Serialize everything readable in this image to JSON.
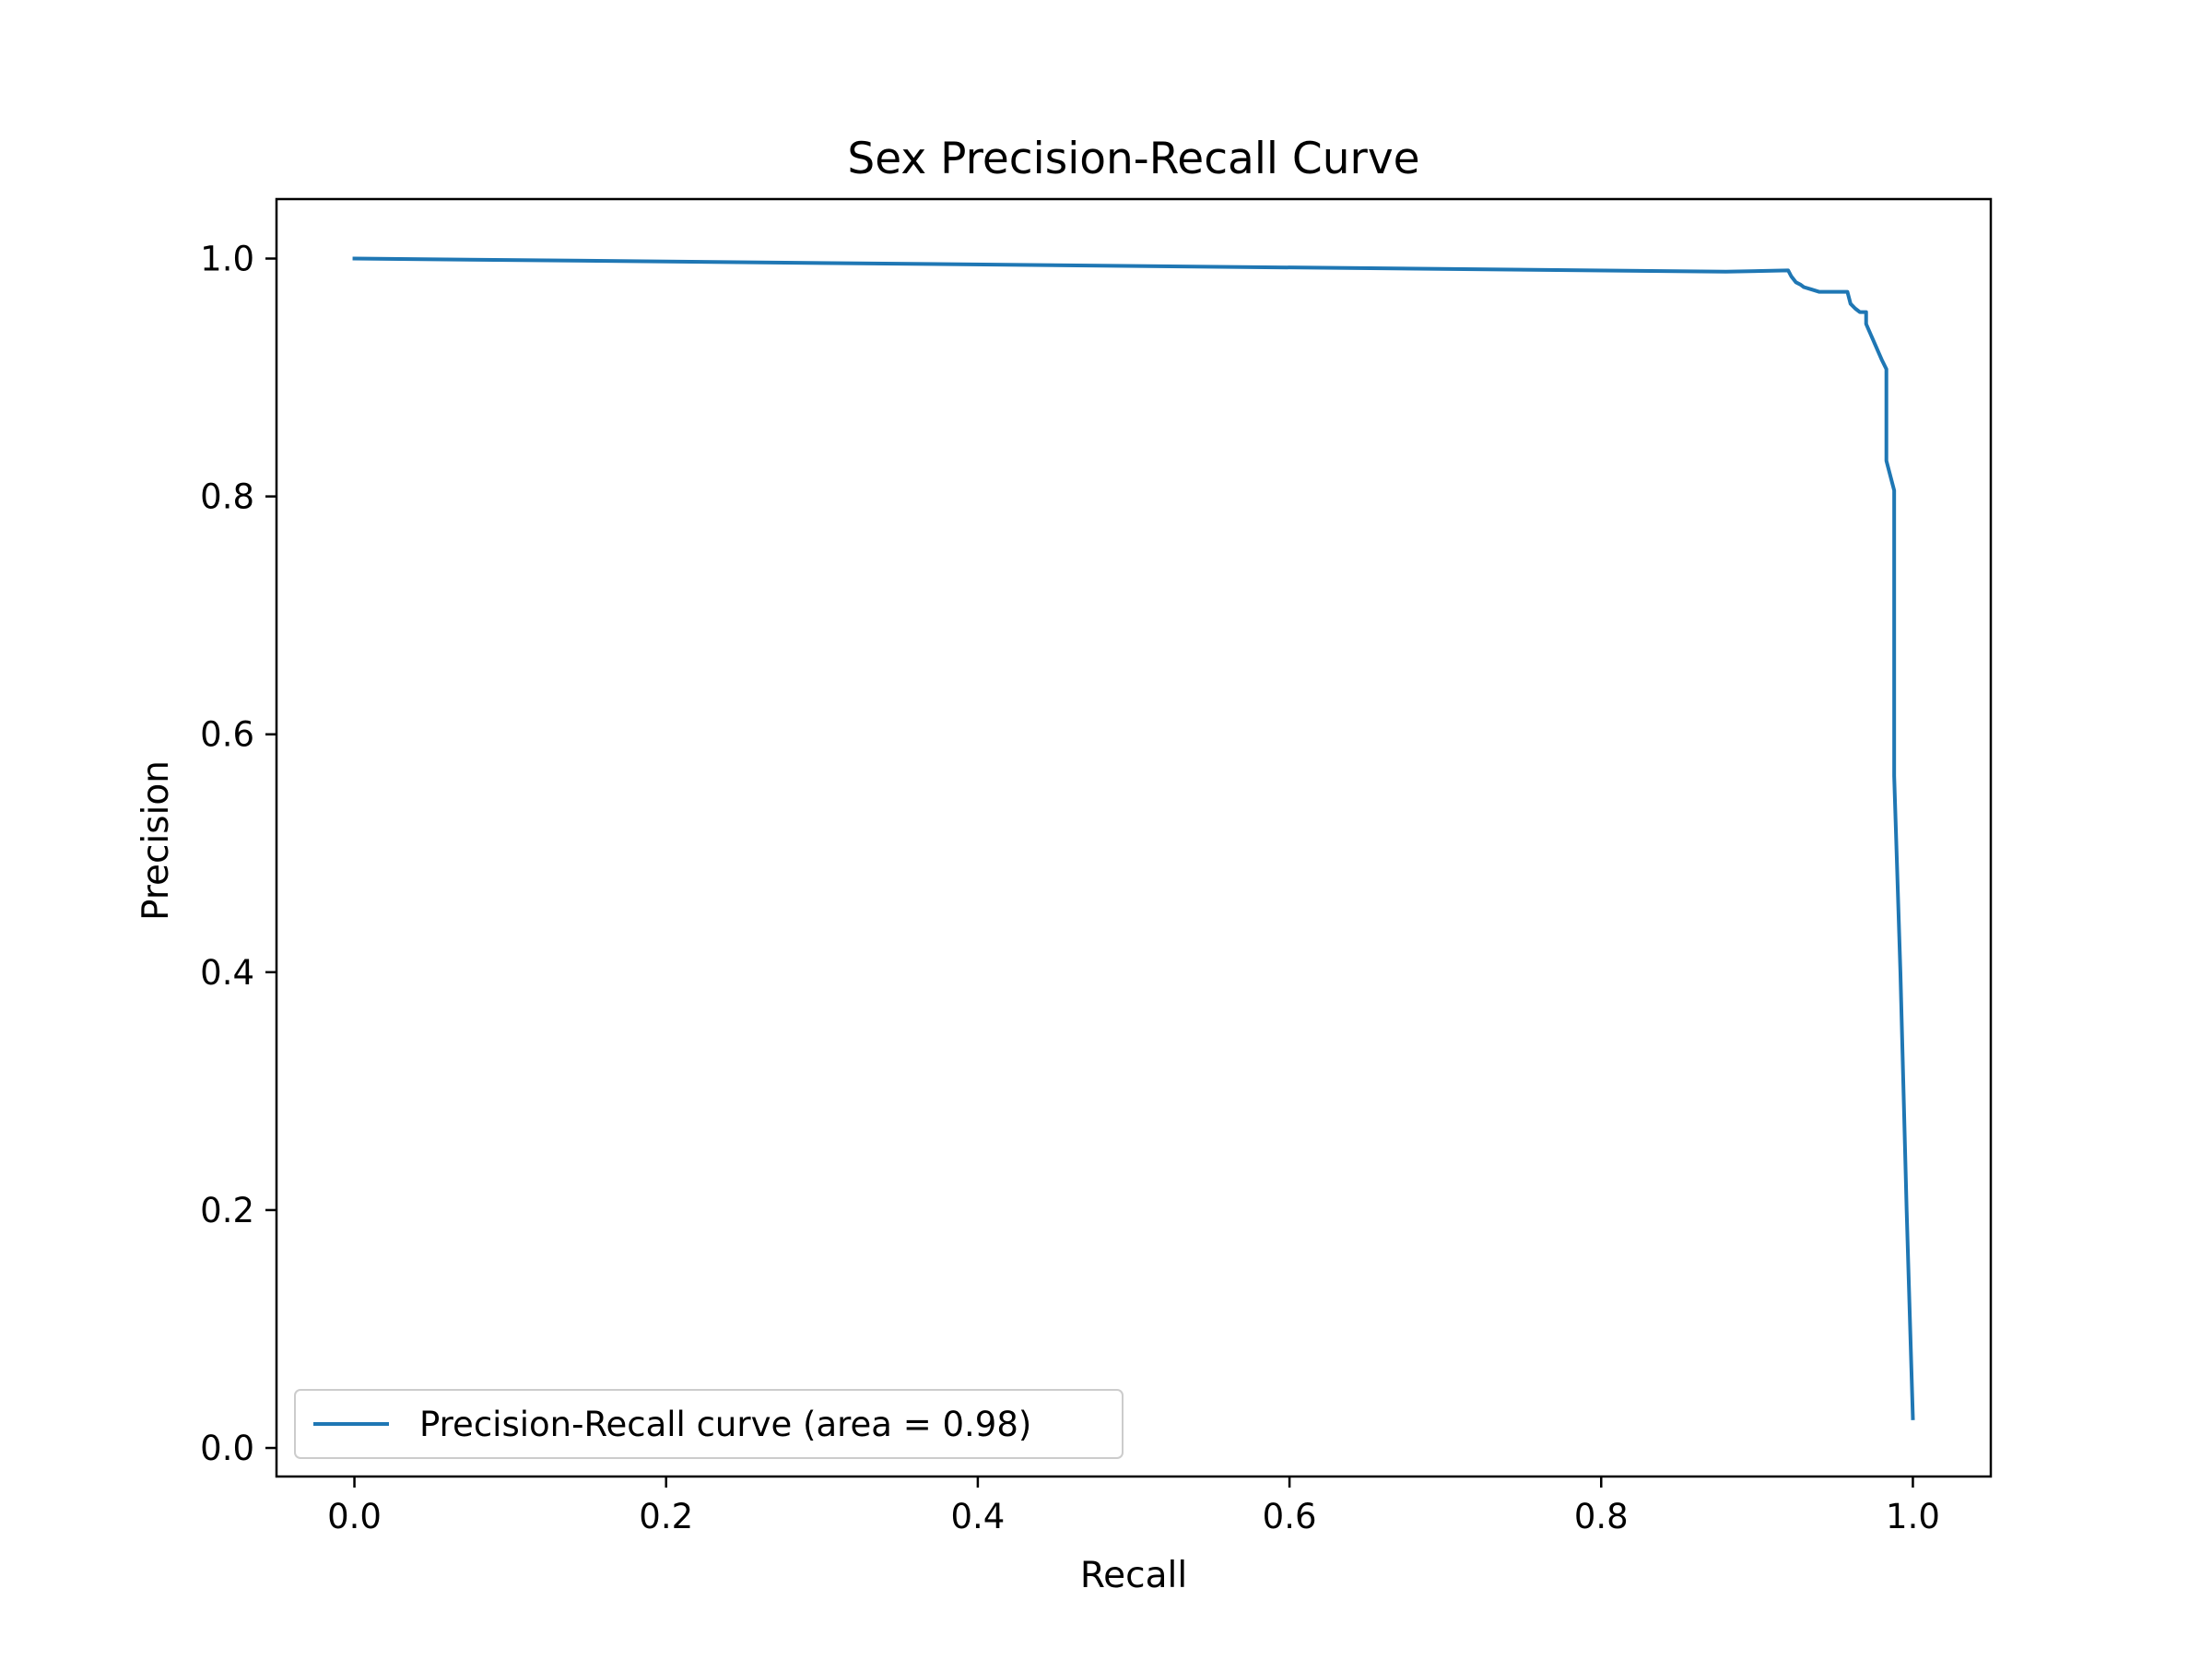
{
  "chart_data": {
    "type": "line",
    "title": "Sex Precision-Recall Curve",
    "xlabel": "Recall",
    "ylabel": "Precision",
    "xlim": [
      -0.05,
      1.05
    ],
    "ylim": [
      -0.024,
      1.05
    ],
    "xticks": [
      0.0,
      0.2,
      0.4,
      0.6,
      0.8,
      1.0
    ],
    "yticks": [
      0.0,
      0.2,
      0.4,
      0.6,
      0.8,
      1.0
    ],
    "xtick_labels": [
      "0.0",
      "0.2",
      "0.4",
      "0.6",
      "0.8",
      "1.0"
    ],
    "ytick_labels": [
      "0.0",
      "0.2",
      "0.4",
      "0.6",
      "0.8",
      "1.0"
    ],
    "grid": false,
    "legend_position": "lower left",
    "series": [
      {
        "name": "Precision-Recall curve (area = 0.98)",
        "color": "#1f77b4",
        "x": [
          0.0,
          0.88,
          0.92,
          0.922,
          0.925,
          0.928,
          0.93,
          0.935,
          0.94,
          0.958,
          0.96,
          0.963,
          0.966,
          0.97,
          0.97,
          0.975,
          0.98,
          0.983,
          0.983,
          0.988,
          0.988,
          0.992,
          0.996,
          1.0
        ],
        "y": [
          1.0,
          0.989,
          0.99,
          0.985,
          0.98,
          0.978,
          0.976,
          0.974,
          0.972,
          0.972,
          0.962,
          0.958,
          0.955,
          0.955,
          0.945,
          0.93,
          0.915,
          0.907,
          0.83,
          0.805,
          0.565,
          0.4,
          0.2,
          0.025
        ]
      }
    ]
  }
}
